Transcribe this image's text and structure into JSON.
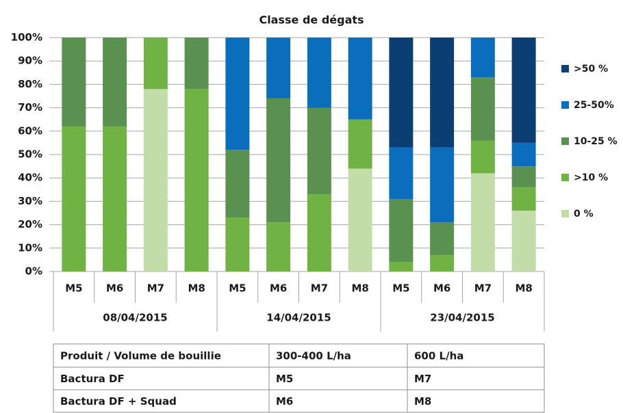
{
  "chart_data": {
    "type": "stacked_bar",
    "title": "Classe de dégats",
    "groups": [
      {
        "name": "08/04/2015",
        "categories": [
          "M5",
          "M6",
          "M7",
          "M8"
        ]
      },
      {
        "name": "14/04/2015",
        "categories": [
          "M5",
          "M6",
          "M7",
          "M8"
        ]
      },
      {
        "name": "23/04/2015",
        "categories": [
          "M5",
          "M6",
          "M7",
          "M8"
        ]
      }
    ],
    "series": [
      {
        "name": "0 %",
        "color": "#c2dda8",
        "values": [
          0,
          0,
          78,
          0,
          0,
          0,
          0,
          44,
          0,
          0,
          42,
          26
        ]
      },
      {
        "name": ">10 %",
        "color": "#70b244",
        "values": [
          62,
          62,
          22,
          78,
          23,
          21,
          33,
          21,
          4,
          7,
          14,
          10
        ]
      },
      {
        "name": "10-25 %",
        "color": "#5a9150",
        "values": [
          38,
          38,
          0,
          22,
          29,
          53,
          37,
          0,
          27,
          14,
          27,
          9
        ]
      },
      {
        "name": "25-50%",
        "color": "#0a6ebd",
        "values": [
          0,
          0,
          0,
          0,
          48,
          26,
          30,
          35,
          22,
          32,
          17,
          10
        ]
      },
      {
        "name": ">50 %",
        "color": "#0b3f73",
        "values": [
          0,
          0,
          0,
          0,
          0,
          0,
          0,
          0,
          47,
          47,
          0,
          45
        ]
      }
    ],
    "ylim": [
      0,
      100
    ],
    "yticks": [
      {
        "value": 0,
        "label": "0%"
      },
      {
        "value": 10,
        "label": "10%"
      },
      {
        "value": 20,
        "label": "20%"
      },
      {
        "value": 30,
        "label": "30%"
      },
      {
        "value": 40,
        "label": "40%"
      },
      {
        "value": 50,
        "label": "50%"
      },
      {
        "value": 60,
        "label": "60%"
      },
      {
        "value": 70,
        "label": "70%"
      },
      {
        "value": 80,
        "label": "80%"
      },
      {
        "value": 90,
        "label": "90%"
      },
      {
        "value": 100,
        "label": "100%"
      }
    ],
    "grid": true,
    "legend": "right"
  },
  "table": {
    "header": [
      "Produit / Volume de bouillie",
      "300-400 L/ha",
      "600 L/ha"
    ],
    "rows": [
      [
        "Bactura DF",
        "M5",
        "M7"
      ],
      [
        "Bactura DF + Squad",
        "M6",
        "M8"
      ]
    ]
  }
}
